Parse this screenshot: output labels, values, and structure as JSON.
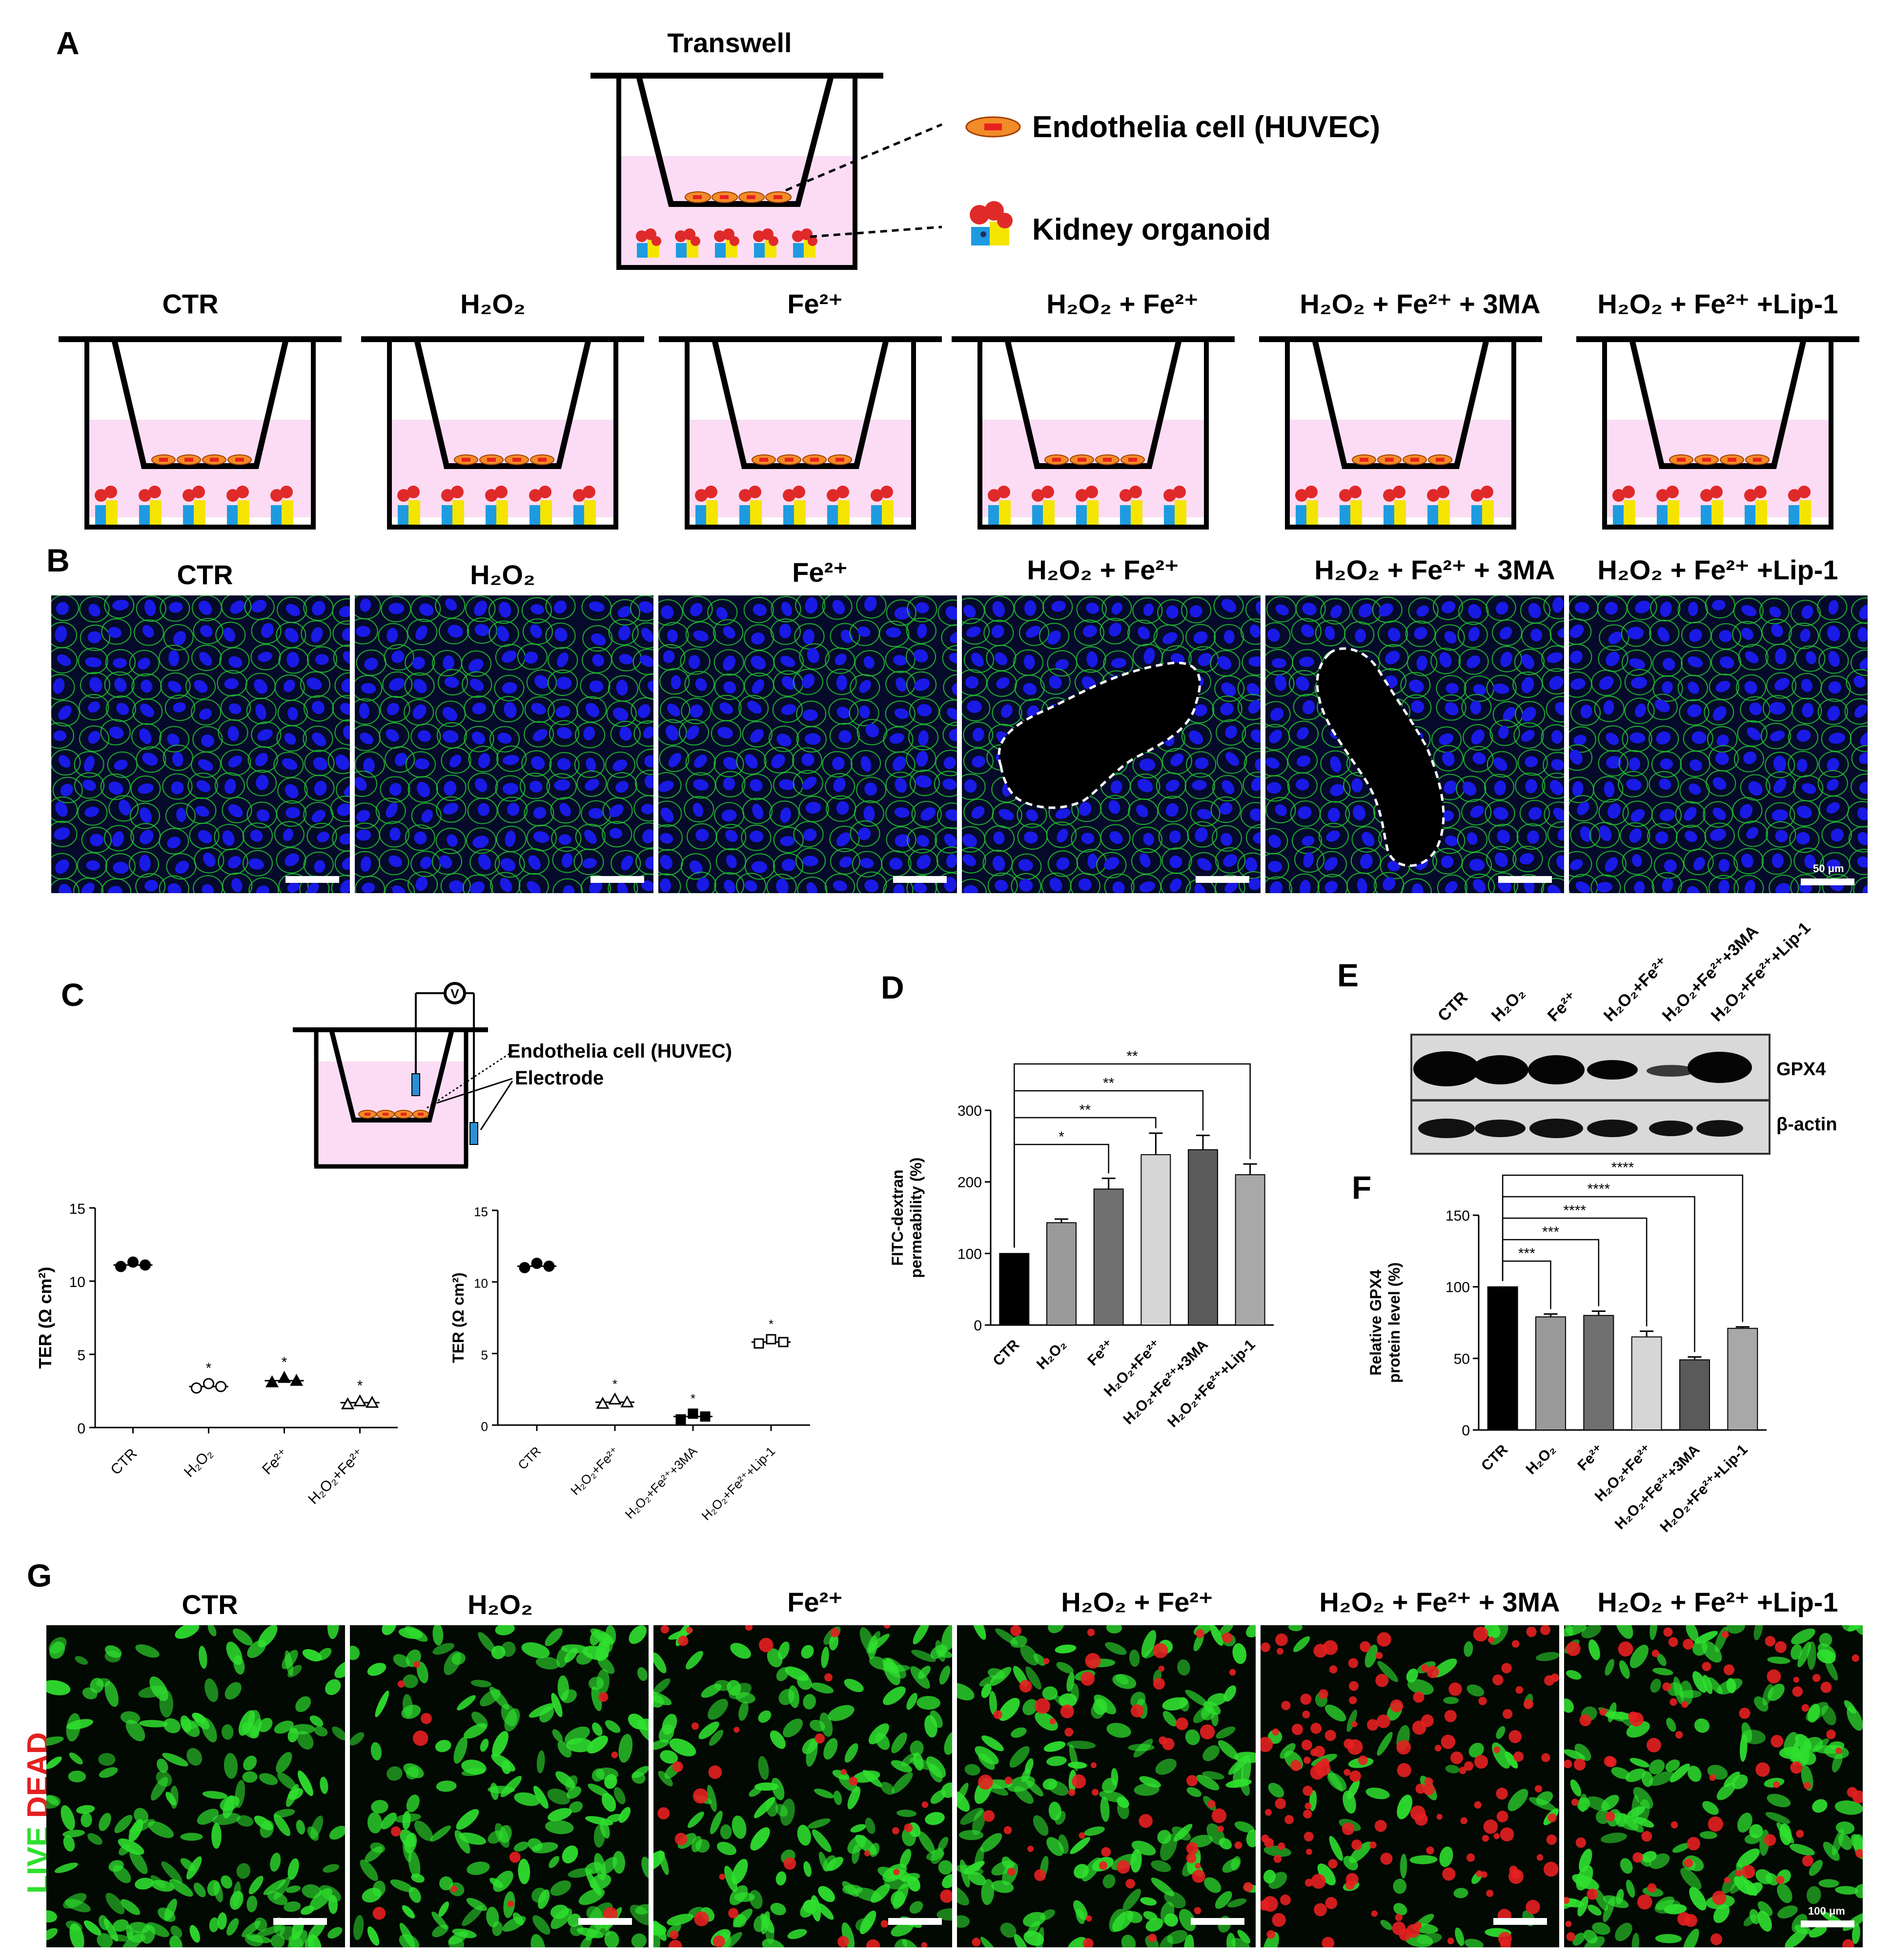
{
  "panels": {
    "A": "A",
    "B": "B",
    "C": "C",
    "D": "D",
    "E": "E",
    "F": "F",
    "G": "G"
  },
  "panel_a": {
    "title": "Transwell",
    "legend_cell": "Endothelia cell (HUVEC)",
    "legend_organoid": "Kidney organoid"
  },
  "groups": {
    "g1": "CTR",
    "g2": "H₂O₂",
    "g3": "Fe²⁺",
    "g4": "H₂O₂ + Fe²⁺",
    "g5": "H₂O₂ + Fe²⁺ + 3MA",
    "g6": "H₂O₂ + Fe²⁺ +Lip-1"
  },
  "panel_b": {
    "scale_text": "50 μm"
  },
  "panel_c": {
    "diagram_cell": "Endothelia cell (HUVEC)",
    "diagram_electrode": "Electrode",
    "voltmeter": "V"
  },
  "panel_e": {
    "lanes": [
      "CTR",
      "H₂O₂",
      "Fe²⁺",
      "H₂O₂+Fe²⁺",
      "H₂O₂+Fe²⁺+3MA",
      "H₂O₂+Fe²⁺+Lip-1"
    ],
    "band1": "GPX4",
    "band2": "β-actin"
  },
  "panel_g": {
    "side_live": "LIVE",
    "side_dead": "DEAD",
    "scale_text": "100 μm"
  },
  "colors": {
    "nuclei": "#1a1ae6",
    "junction": "#22c030",
    "live": "#2fe02f",
    "dead": "#e52020",
    "medium": "#fbdcf4",
    "cell_orange": "#f28c28"
  },
  "chart_data": [
    {
      "id": "C_left",
      "type": "scatter",
      "ylabel": "TER (Ω cm²)",
      "ylim": [
        0,
        15
      ],
      "yticks": [
        0,
        5,
        10,
        15
      ],
      "categories": [
        "CTR",
        "H₂O₂",
        "Fe²⁺",
        "H₂O₂+Fe²⁺"
      ],
      "means": [
        11.1,
        2.8,
        3.2,
        1.7
      ],
      "points": [
        [
          11.0,
          11.3,
          11.1
        ],
        [
          2.7,
          3.0,
          2.8
        ],
        [
          3.1,
          3.4,
          3.2
        ],
        [
          1.6,
          1.8,
          1.7
        ]
      ],
      "markers": [
        "filled-circle",
        "open-circle",
        "filled-triangle",
        "open-triangle"
      ],
      "annotations": [
        "",
        "*",
        "*",
        "*"
      ]
    },
    {
      "id": "C_right",
      "type": "scatter",
      "ylabel": "TER (Ω cm²)",
      "ylim": [
        0,
        15
      ],
      "yticks": [
        0,
        5,
        10,
        15
      ],
      "categories": [
        "CTR",
        "H₂O₂+Fe²⁺",
        "H₂O₂+Fe²⁺+3MA",
        "H₂O₂+Fe²⁺+Lip-1"
      ],
      "means": [
        11.1,
        1.6,
        0.6,
        5.8
      ],
      "points": [
        [
          11.0,
          11.3,
          11.1
        ],
        [
          1.5,
          1.8,
          1.6
        ],
        [
          0.4,
          0.8,
          0.6
        ],
        [
          5.7,
          6.0,
          5.8
        ]
      ],
      "markers": [
        "filled-circle",
        "open-triangle",
        "filled-square",
        "open-square"
      ],
      "annotations": [
        "",
        "*",
        "*",
        "*"
      ]
    },
    {
      "id": "D",
      "type": "bar",
      "ylabel": "FITC-dextran permeability (%)",
      "ylim": [
        0,
        300
      ],
      "yticks": [
        0,
        100,
        200,
        300
      ],
      "categories": [
        "CTR",
        "H₂O₂",
        "Fe²⁺",
        "H₂O₂+Fe²⁺",
        "H₂O₂+Fe²⁺+3MA",
        "H₂O₂+Fe²⁺+Lip-1"
      ],
      "values": [
        100,
        143,
        190,
        238,
        245,
        210
      ],
      "errors": [
        0,
        5,
        15,
        30,
        20,
        15
      ],
      "bar_colors": [
        "#000000",
        "#9a9a9a",
        "#707070",
        "#d6d6d6",
        "#5a5a5a",
        "#a8a8a8"
      ],
      "significance": [
        {
          "from": 0,
          "to": 2,
          "label": "*"
        },
        {
          "from": 0,
          "to": 3,
          "label": "**"
        },
        {
          "from": 0,
          "to": 4,
          "label": "**"
        },
        {
          "from": 0,
          "to": 5,
          "label": "**"
        }
      ]
    },
    {
      "id": "F",
      "type": "bar",
      "ylabel": "Relative GPX4 protein level (%)",
      "ylim": [
        0,
        150
      ],
      "yticks": [
        0,
        50,
        100,
        150
      ],
      "categories": [
        "CTR",
        "H₂O₂",
        "Fe²⁺",
        "H₂O₂+Fe²⁺",
        "H₂O₂+Fe²⁺+3MA",
        "H₂O₂+Fe²⁺+Lip-1"
      ],
      "values": [
        100,
        79,
        80,
        65,
        49,
        71
      ],
      "errors": [
        0,
        2,
        3,
        4,
        2,
        1
      ],
      "bar_colors": [
        "#000000",
        "#9a9a9a",
        "#707070",
        "#d6d6d6",
        "#5a5a5a",
        "#a8a8a8"
      ],
      "significance": [
        {
          "from": 0,
          "to": 1,
          "label": "***"
        },
        {
          "from": 0,
          "to": 2,
          "label": "***"
        },
        {
          "from": 0,
          "to": 3,
          "label": "****"
        },
        {
          "from": 0,
          "to": 4,
          "label": "****"
        },
        {
          "from": 0,
          "to": 5,
          "label": "****"
        }
      ]
    }
  ]
}
